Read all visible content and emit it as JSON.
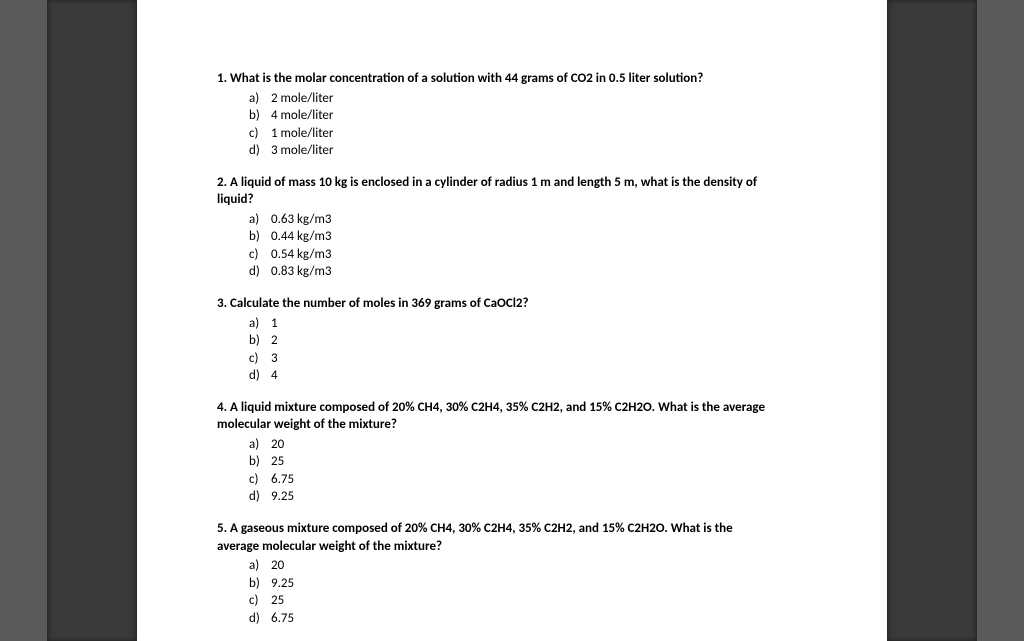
{
  "page": {
    "background": "#ffffff",
    "outer_bg": "#5a5a5a",
    "mid_bg": "#3a3a3a",
    "font_family": "Calibri",
    "text_color": "#000000",
    "base_fontsize": 13
  },
  "option_labels": [
    "a)",
    "b)",
    "c)",
    "d)"
  ],
  "questions": [
    {
      "number": "1.",
      "stem": "What is the molar concentration of a solution with 44 grams of CO2 in 0.5 liter solution?",
      "stem2": "",
      "options": [
        "2 mole/liter",
        "4 mole/liter",
        "1 mole/liter",
        "3 mole/liter"
      ]
    },
    {
      "number": "2.",
      "stem": "A liquid of mass 10 kg is enclosed in a cylinder of radius 1 m and length 5 m, what is the density of",
      "stem2": "liquid?",
      "options": [
        "0.63 kg/m3",
        "0.44 kg/m3",
        "0.54 kg/m3",
        "0.83 kg/m3"
      ]
    },
    {
      "number": "3.",
      "stem": "Calculate the number of moles in 369 grams of CaOCl2?",
      "stem2": "",
      "options": [
        "1",
        "2",
        "3",
        "4"
      ]
    },
    {
      "number": "4.",
      "stem": "A liquid mixture composed of 20% CH4, 30% C2H4, 35% C2H2, and 15% C2H2O. What is the average",
      "stem2": "molecular weight of the mixture?",
      "options": [
        "20",
        "25",
        "6.75",
        "9.25"
      ]
    },
    {
      "number": "5.",
      "stem": "A gaseous mixture composed of 20% CH4, 30% C2H4, 35% C2H2, and 15% C2H2O. What is the",
      "stem2": "average molecular weight of the mixture?",
      "options": [
        "20",
        "9.25",
        "25",
        "6.75"
      ]
    }
  ]
}
